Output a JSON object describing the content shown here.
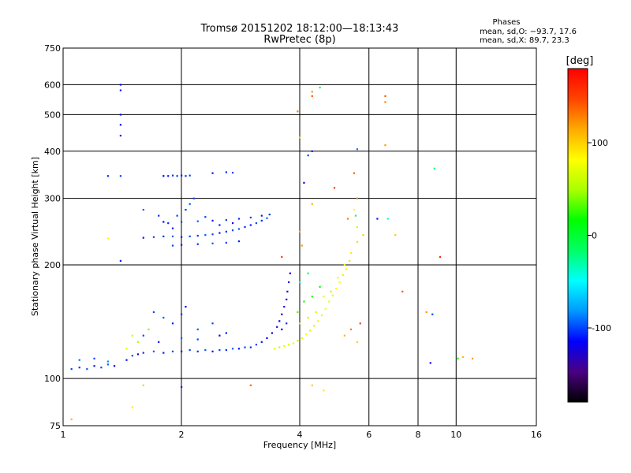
{
  "chart_data": {
    "type": "scatter",
    "title": "Tromsø 20151202 18:12:00—18:13:43",
    "subtitle": "RwPretec (8p)",
    "xlabel": "Frequency [MHz]",
    "ylabel": "Stationary phase Virtual Height [km]",
    "x_scale": "log",
    "y_scale": "log",
    "xlim": [
      1,
      16
    ],
    "ylim": [
      75,
      750
    ],
    "x_ticks": [
      1,
      2,
      4,
      6,
      8,
      10,
      16
    ],
    "y_ticks": [
      75,
      100,
      200,
      300,
      400,
      500,
      600,
      750
    ],
    "grid": true,
    "stats": {
      "heading": "Phases",
      "line_o": "mean, sd,O: −93.7, 17.6",
      "line_x": "mean, sd,X:  89.7, 23.3"
    },
    "colorbar": {
      "label": "[deg]",
      "ticks": [
        100,
        0,
        -100
      ],
      "range": [
        -180,
        180
      ],
      "colors": [
        "#000000",
        "#4b0082",
        "#0000ff",
        "#0099ff",
        "#00ffff",
        "#00ff66",
        "#00ff00",
        "#aaff00",
        "#ffff00",
        "#ffaa00",
        "#ff4400",
        "#ff0000"
      ]
    },
    "series": [
      {
        "points": [
          [
            1.05,
            106,
            -100
          ],
          [
            1.1,
            107,
            -105
          ],
          [
            1.15,
            106,
            -95
          ],
          [
            1.2,
            108,
            -110
          ],
          [
            1.25,
            107,
            -100
          ],
          [
            1.3,
            109,
            -95
          ],
          [
            1.35,
            108,
            -120
          ],
          [
            1.1,
            112,
            -90
          ],
          [
            1.2,
            113,
            -100
          ],
          [
            1.3,
            111,
            -85
          ],
          [
            1.45,
            112,
            -110
          ],
          [
            1.5,
            115,
            -100
          ],
          [
            1.55,
            116,
            -130
          ],
          [
            1.6,
            117,
            -105
          ],
          [
            1.7,
            118,
            -95
          ],
          [
            1.8,
            117,
            -110
          ],
          [
            1.9,
            118,
            -100
          ],
          [
            2.0,
            118,
            -115
          ],
          [
            2.1,
            119,
            -100
          ],
          [
            2.2,
            118,
            -105
          ],
          [
            2.3,
            119,
            -95
          ],
          [
            2.4,
            118,
            -110
          ],
          [
            2.5,
            119,
            -100
          ],
          [
            2.6,
            119,
            -105
          ],
          [
            2.7,
            120,
            -95
          ],
          [
            2.8,
            120,
            -110
          ],
          [
            2.9,
            121,
            -100
          ],
          [
            3.0,
            121,
            -105
          ],
          [
            3.1,
            123,
            -100
          ],
          [
            3.2,
            125,
            -110
          ],
          [
            3.3,
            128,
            -120
          ],
          [
            3.4,
            132,
            -130
          ],
          [
            3.5,
            137,
            -125
          ],
          [
            3.55,
            142,
            -120
          ],
          [
            3.6,
            148,
            -125
          ],
          [
            3.65,
            155,
            -130
          ],
          [
            3.7,
            162,
            -125
          ],
          [
            3.72,
            170,
            -130
          ],
          [
            3.75,
            180,
            -125
          ],
          [
            3.78,
            190,
            -120
          ],
          [
            3.6,
            135,
            -115
          ],
          [
            3.7,
            140,
            -105
          ],
          [
            1.7,
            150,
            -100
          ],
          [
            1.8,
            145,
            -95
          ],
          [
            1.9,
            140,
            -110
          ],
          [
            2.0,
            148,
            -105
          ],
          [
            2.05,
            155,
            -120
          ],
          [
            2.2,
            135,
            -95
          ],
          [
            2.4,
            140,
            -100
          ],
          [
            2.6,
            132,
            -110
          ],
          [
            1.6,
            130,
            -100
          ],
          [
            1.75,
            125,
            -110
          ],
          [
            2.0,
            128,
            -95
          ],
          [
            2.2,
            127,
            -100
          ],
          [
            2.5,
            130,
            -120
          ]
        ]
      },
      {
        "points": [
          [
            1.6,
            236,
            -110
          ],
          [
            1.7,
            237,
            -100
          ],
          [
            1.8,
            238,
            -105
          ],
          [
            1.9,
            238,
            -95
          ],
          [
            2.0,
            237,
            -110
          ],
          [
            2.1,
            238,
            -100
          ],
          [
            2.2,
            239,
            -105
          ],
          [
            2.3,
            240,
            -95
          ],
          [
            2.4,
            241,
            -100
          ],
          [
            2.5,
            243,
            -110
          ],
          [
            2.6,
            245,
            -105
          ],
          [
            2.7,
            247,
            -100
          ],
          [
            2.8,
            249,
            -95
          ],
          [
            2.9,
            252,
            -105
          ],
          [
            3.0,
            255,
            -110
          ],
          [
            3.1,
            258,
            -100
          ],
          [
            3.2,
            262,
            -105
          ],
          [
            3.3,
            266,
            -95
          ],
          [
            1.9,
            225,
            -100
          ],
          [
            2.0,
            226,
            -110
          ],
          [
            2.2,
            227,
            -105
          ],
          [
            2.4,
            228,
            -95
          ],
          [
            2.6,
            229,
            -100
          ],
          [
            2.8,
            231,
            -110
          ],
          [
            1.85,
            258,
            -105
          ],
          [
            2.0,
            260,
            -100
          ],
          [
            2.2,
            261,
            -95
          ],
          [
            2.4,
            262,
            -110
          ],
          [
            2.6,
            263,
            -100
          ],
          [
            2.8,
            265,
            -105
          ],
          [
            3.0,
            267,
            -100
          ],
          [
            3.2,
            270,
            -110
          ],
          [
            3.35,
            272,
            -105
          ],
          [
            1.8,
            260,
            -115
          ],
          [
            1.9,
            250,
            -110
          ],
          [
            1.95,
            270,
            -100
          ],
          [
            2.05,
            280,
            -105
          ],
          [
            2.1,
            290,
            -95
          ],
          [
            2.15,
            300,
            -100
          ],
          [
            1.8,
            344,
            -115
          ],
          [
            1.85,
            344,
            -110
          ],
          [
            1.9,
            345,
            -105
          ],
          [
            1.95,
            344,
            -100
          ],
          [
            2.0,
            345,
            -110
          ],
          [
            2.05,
            344,
            -105
          ],
          [
            2.1,
            345,
            -100
          ],
          [
            2.4,
            350,
            -110
          ],
          [
            2.6,
            352,
            -105
          ],
          [
            2.7,
            351,
            -100
          ],
          [
            1.6,
            280,
            -95
          ],
          [
            1.75,
            270,
            -105
          ],
          [
            2.3,
            268,
            -100
          ],
          [
            2.5,
            255,
            -110
          ],
          [
            2.7,
            258,
            -120
          ]
        ]
      },
      {
        "points": [
          [
            1.4,
            440,
            -120
          ],
          [
            1.4,
            470,
            -115
          ],
          [
            1.4,
            500,
            -125
          ],
          [
            1.4,
            580,
            -110
          ],
          [
            1.4,
            600,
            -120
          ],
          [
            1.4,
            344,
            -100
          ],
          [
            1.3,
            344,
            -105
          ],
          [
            1.4,
            205,
            -110
          ],
          [
            1.3,
            235,
            80
          ],
          [
            1.5,
            84,
            90
          ],
          [
            1.6,
            96,
            100
          ],
          [
            1.05,
            78,
            110
          ]
        ]
      },
      {
        "points": [
          [
            3.45,
            120,
            70
          ],
          [
            3.55,
            121,
            60
          ],
          [
            3.65,
            122,
            75
          ],
          [
            3.75,
            123,
            65
          ],
          [
            3.85,
            124,
            70
          ],
          [
            3.95,
            126,
            60
          ],
          [
            4.05,
            128,
            75
          ],
          [
            4.15,
            131,
            80
          ],
          [
            4.25,
            134,
            70
          ],
          [
            4.35,
            138,
            65
          ],
          [
            4.45,
            142,
            75
          ],
          [
            4.55,
            147,
            70
          ],
          [
            4.65,
            153,
            80
          ],
          [
            4.75,
            160,
            75
          ],
          [
            4.85,
            166,
            70
          ],
          [
            4.95,
            173,
            85
          ],
          [
            5.05,
            180,
            80
          ],
          [
            5.15,
            188,
            90
          ],
          [
            5.25,
            195,
            85
          ],
          [
            5.35,
            205,
            95
          ],
          [
            4.0,
            140,
            60
          ],
          [
            4.2,
            145,
            55
          ],
          [
            4.4,
            150,
            65
          ],
          [
            4.6,
            165,
            70
          ],
          [
            4.8,
            170,
            60
          ],
          [
            5.0,
            185,
            75
          ],
          [
            5.2,
            200,
            80
          ],
          [
            5.4,
            215,
            90
          ],
          [
            5.6,
            230,
            95
          ],
          [
            5.8,
            240,
            100
          ],
          [
            3.95,
            150,
            30
          ],
          [
            4.1,
            160,
            20
          ],
          [
            4.3,
            165,
            10
          ],
          [
            4.5,
            175,
            15
          ],
          [
            4.0,
            180,
            -40
          ],
          [
            4.2,
            190,
            -20
          ],
          [
            1.55,
            125,
            50
          ],
          [
            1.5,
            130,
            60
          ],
          [
            1.45,
            120,
            70
          ],
          [
            1.65,
            135,
            40
          ],
          [
            5.2,
            130,
            110
          ],
          [
            5.4,
            135,
            130
          ],
          [
            5.6,
            125,
            100
          ],
          [
            5.7,
            140,
            150
          ]
        ]
      },
      {
        "points": [
          [
            3.95,
            510,
            130
          ],
          [
            4.3,
            560,
            140
          ],
          [
            4.3,
            575,
            120
          ],
          [
            6.6,
            540,
            130
          ],
          [
            6.6,
            560,
            140
          ],
          [
            6.6,
            415,
            120
          ],
          [
            4.5,
            590,
            -10
          ],
          [
            4.0,
            435,
            100
          ],
          [
            4.2,
            390,
            -100
          ],
          [
            4.3,
            400,
            -110
          ],
          [
            5.6,
            405,
            -90
          ],
          [
            6.3,
            265,
            -110
          ],
          [
            6.7,
            265,
            -40
          ],
          [
            5.6,
            300,
            120
          ],
          [
            5.5,
            350,
            140
          ],
          [
            4.3,
            290,
            110
          ],
          [
            4.1,
            330,
            -130
          ],
          [
            4.9,
            320,
            150
          ],
          [
            7.0,
            240,
            100
          ],
          [
            7.3,
            170,
            140
          ],
          [
            8.4,
            150,
            120
          ],
          [
            8.7,
            148,
            -100
          ],
          [
            8.8,
            360,
            -20
          ],
          [
            8.6,
            110,
            -120
          ],
          [
            9.1,
            210,
            160
          ],
          [
            10.1,
            113,
            20
          ],
          [
            10.4,
            114,
            110
          ],
          [
            11.0,
            113,
            120
          ],
          [
            2.0,
            95,
            -110
          ],
          [
            3.0,
            96,
            140
          ],
          [
            4.3,
            96,
            100
          ],
          [
            4.6,
            93,
            90
          ],
          [
            4.0,
            245,
            110
          ],
          [
            4.05,
            225,
            120
          ],
          [
            3.6,
            210,
            150
          ],
          [
            5.6,
            252,
            60
          ],
          [
            5.55,
            270,
            -20
          ],
          [
            5.5,
            280,
            80
          ],
          [
            5.3,
            265,
            130
          ]
        ]
      }
    ]
  }
}
